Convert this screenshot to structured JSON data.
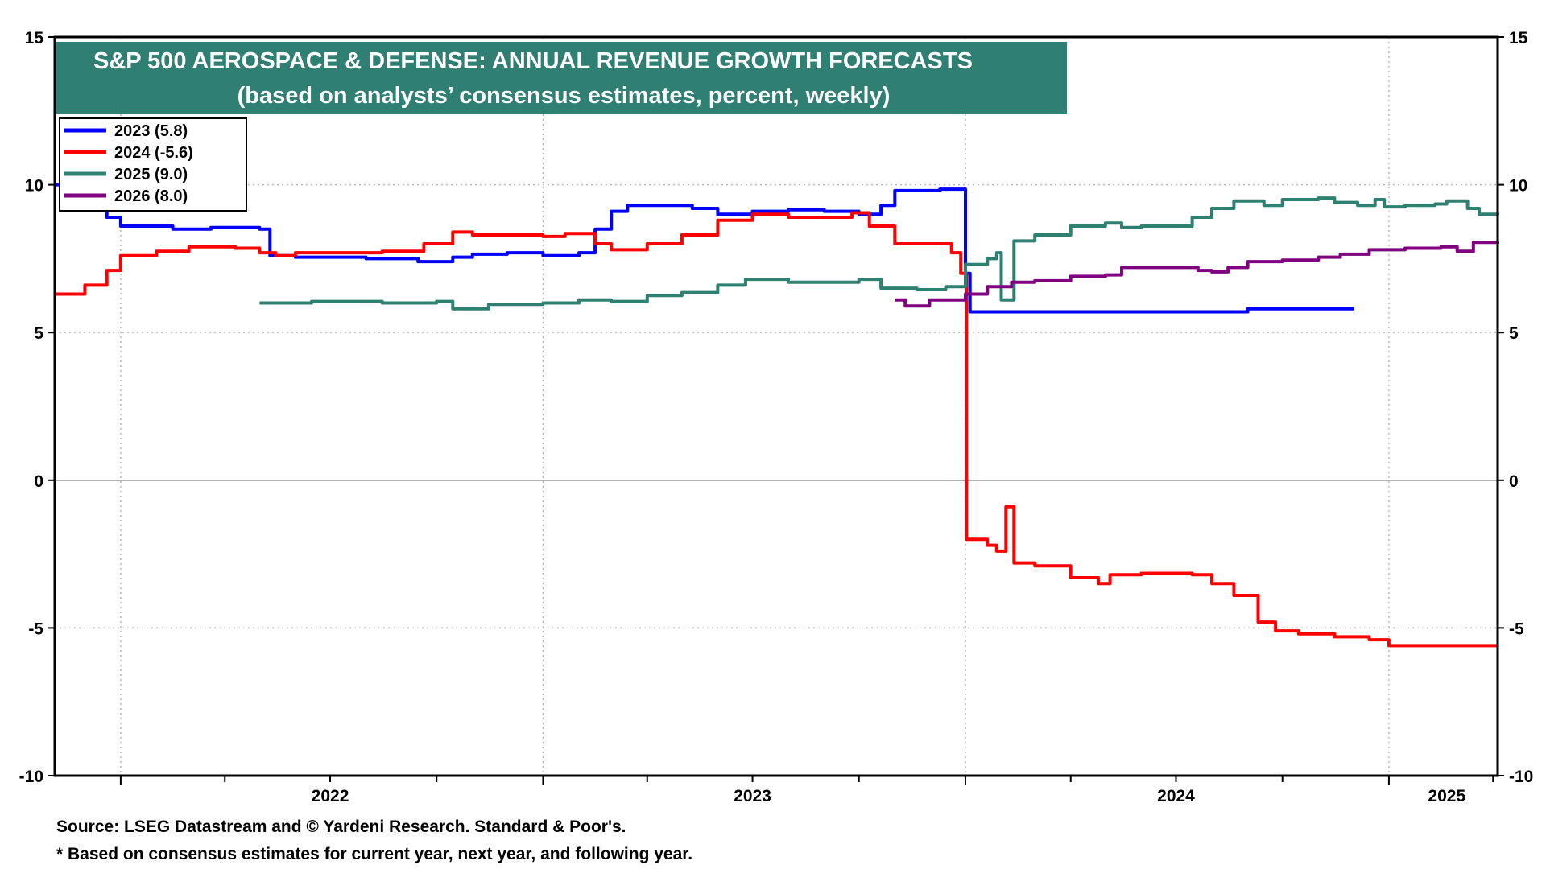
{
  "chart_data": {
    "type": "line",
    "title": "S&P 500 AEROSPACE & DEFENSE: ANNUAL REVENUE GROWTH FORECASTS",
    "subtitle": "(based on analysts’ consensus estimates, percent, weekly)",
    "ylim": [
      -10,
      15
    ],
    "yticks": [
      15,
      10,
      5,
      0,
      -5,
      -10
    ],
    "ytick_labels": [
      "15",
      "10",
      "5",
      "0",
      "-5",
      "-10"
    ],
    "xlim": [
      "2021-11-05",
      "2025-04-05"
    ],
    "year_labels": [
      {
        "label": "2022",
        "at": "2022-07-01"
      },
      {
        "label": "2023",
        "at": "2023-07-01"
      },
      {
        "label": "2024",
        "at": "2024-07-01"
      },
      {
        "label": "2025",
        "at": "2025-02-20"
      }
    ],
    "grid": true,
    "legend_position": "top-left",
    "series": [
      {
        "name": "2023 (5.8)",
        "color": "#0000ff",
        "points": [
          [
            "2021-11-05",
            10.0
          ],
          [
            "2021-12-05",
            9.4
          ],
          [
            "2021-12-20",
            8.9
          ],
          [
            "2022-01-01",
            8.6
          ],
          [
            "2022-02-01",
            8.6
          ],
          [
            "2022-02-15",
            8.5
          ],
          [
            "2022-03-20",
            8.55
          ],
          [
            "2022-05-01",
            8.5
          ],
          [
            "2022-05-10",
            7.6
          ],
          [
            "2022-06-01",
            7.55
          ],
          [
            "2022-08-01",
            7.5
          ],
          [
            "2022-09-15",
            7.4
          ],
          [
            "2022-10-15",
            7.55
          ],
          [
            "2022-11-01",
            7.65
          ],
          [
            "2022-12-01",
            7.7
          ],
          [
            "2023-01-01",
            7.6
          ],
          [
            "2023-02-01",
            7.7
          ],
          [
            "2023-02-15",
            8.5
          ],
          [
            "2023-03-01",
            9.1
          ],
          [
            "2023-03-15",
            9.3
          ],
          [
            "2023-04-15",
            9.3
          ],
          [
            "2023-05-10",
            9.2
          ],
          [
            "2023-06-01",
            9.0
          ],
          [
            "2023-07-01",
            9.1
          ],
          [
            "2023-08-01",
            9.15
          ],
          [
            "2023-09-01",
            9.1
          ],
          [
            "2023-10-01",
            9.0
          ],
          [
            "2023-10-20",
            9.3
          ],
          [
            "2023-11-01",
            9.8
          ],
          [
            "2023-12-10",
            9.85
          ],
          [
            "2023-12-28",
            9.85
          ],
          [
            "2024-01-01",
            7.0
          ],
          [
            "2024-01-05",
            5.7
          ],
          [
            "2024-07-01",
            5.7
          ],
          [
            "2024-09-01",
            5.8
          ],
          [
            "2024-12-02",
            5.8
          ]
        ]
      },
      {
        "name": "2024 (-5.6)",
        "color": "#ff0000",
        "points": [
          [
            "2021-11-05",
            6.3
          ],
          [
            "2021-12-01",
            6.6
          ],
          [
            "2021-12-20",
            7.1
          ],
          [
            "2022-01-01",
            7.6
          ],
          [
            "2022-02-01",
            7.75
          ],
          [
            "2022-03-01",
            7.9
          ],
          [
            "2022-04-10",
            7.85
          ],
          [
            "2022-05-01",
            7.7
          ],
          [
            "2022-05-15",
            7.6
          ],
          [
            "2022-06-01",
            7.7
          ],
          [
            "2022-08-15",
            7.75
          ],
          [
            "2022-09-20",
            8.0
          ],
          [
            "2022-10-15",
            8.4
          ],
          [
            "2022-11-01",
            8.3
          ],
          [
            "2022-12-01",
            8.3
          ],
          [
            "2023-01-01",
            8.25
          ],
          [
            "2023-01-20",
            8.35
          ],
          [
            "2023-02-15",
            8.0
          ],
          [
            "2023-03-01",
            7.8
          ],
          [
            "2023-04-01",
            8.0
          ],
          [
            "2023-05-01",
            8.3
          ],
          [
            "2023-06-01",
            8.8
          ],
          [
            "2023-07-01",
            9.0
          ],
          [
            "2023-08-01",
            8.9
          ],
          [
            "2023-09-01",
            8.9
          ],
          [
            "2023-09-25",
            9.05
          ],
          [
            "2023-10-10",
            8.6
          ],
          [
            "2023-11-01",
            8.0
          ],
          [
            "2023-12-01",
            8.0
          ],
          [
            "2023-12-20",
            7.7
          ],
          [
            "2023-12-28",
            7.0
          ],
          [
            "2024-01-02",
            -2.0
          ],
          [
            "2024-01-20",
            -2.2
          ],
          [
            "2024-01-28",
            -2.4
          ],
          [
            "2024-02-05",
            -0.9
          ],
          [
            "2024-02-12",
            -2.8
          ],
          [
            "2024-03-01",
            -2.9
          ],
          [
            "2024-04-01",
            -3.3
          ],
          [
            "2024-04-25",
            -3.5
          ],
          [
            "2024-05-05",
            -3.2
          ],
          [
            "2024-06-01",
            -3.15
          ],
          [
            "2024-07-15",
            -3.2
          ],
          [
            "2024-08-01",
            -3.5
          ],
          [
            "2024-08-20",
            -3.9
          ],
          [
            "2024-09-10",
            -4.8
          ],
          [
            "2024-09-25",
            -5.1
          ],
          [
            "2024-10-15",
            -5.2
          ],
          [
            "2024-11-15",
            -5.3
          ],
          [
            "2024-12-15",
            -5.4
          ],
          [
            "2025-01-01",
            -5.6
          ],
          [
            "2025-04-05",
            -5.6
          ]
        ]
      },
      {
        "name": "2025 (9.0)",
        "color": "#2e8070",
        "points": [
          [
            "2022-05-01",
            6.0
          ],
          [
            "2022-06-15",
            6.05
          ],
          [
            "2022-08-15",
            6.0
          ],
          [
            "2022-10-01",
            6.05
          ],
          [
            "2022-10-15",
            5.8
          ],
          [
            "2022-11-15",
            5.95
          ],
          [
            "2023-01-01",
            6.0
          ],
          [
            "2023-02-01",
            6.1
          ],
          [
            "2023-03-01",
            6.05
          ],
          [
            "2023-04-01",
            6.25
          ],
          [
            "2023-05-01",
            6.35
          ],
          [
            "2023-06-01",
            6.6
          ],
          [
            "2023-06-25",
            6.8
          ],
          [
            "2023-08-01",
            6.7
          ],
          [
            "2023-09-01",
            6.7
          ],
          [
            "2023-10-01",
            6.8
          ],
          [
            "2023-10-20",
            6.5
          ],
          [
            "2023-11-20",
            6.45
          ],
          [
            "2023-12-15",
            6.55
          ],
          [
            "2024-01-01",
            7.3
          ],
          [
            "2024-01-20",
            7.5
          ],
          [
            "2024-01-28",
            7.7
          ],
          [
            "2024-02-01",
            6.1
          ],
          [
            "2024-02-08",
            6.1
          ],
          [
            "2024-02-12",
            8.1
          ],
          [
            "2024-03-01",
            8.3
          ],
          [
            "2024-04-01",
            8.6
          ],
          [
            "2024-05-01",
            8.7
          ],
          [
            "2024-05-15",
            8.55
          ],
          [
            "2024-06-01",
            8.6
          ],
          [
            "2024-07-01",
            8.6
          ],
          [
            "2024-07-15",
            8.9
          ],
          [
            "2024-08-01",
            9.2
          ],
          [
            "2024-08-20",
            9.45
          ],
          [
            "2024-09-15",
            9.3
          ],
          [
            "2024-10-01",
            9.5
          ],
          [
            "2024-11-01",
            9.55
          ],
          [
            "2024-11-15",
            9.4
          ],
          [
            "2024-12-05",
            9.3
          ],
          [
            "2024-12-20",
            9.5
          ],
          [
            "2024-12-28",
            9.25
          ],
          [
            "2025-01-15",
            9.3
          ],
          [
            "2025-02-10",
            9.35
          ],
          [
            "2025-02-20",
            9.45
          ],
          [
            "2025-03-10",
            9.2
          ],
          [
            "2025-03-20",
            9.0
          ],
          [
            "2025-04-05",
            9.05
          ]
        ]
      },
      {
        "name": "2026 (8.0)",
        "color": "#800080",
        "points": [
          [
            "2023-11-01",
            6.1
          ],
          [
            "2023-11-10",
            5.9
          ],
          [
            "2023-12-01",
            6.1
          ],
          [
            "2024-01-01",
            6.3
          ],
          [
            "2024-01-20",
            6.55
          ],
          [
            "2024-02-10",
            6.7
          ],
          [
            "2024-03-01",
            6.75
          ],
          [
            "2024-04-01",
            6.9
          ],
          [
            "2024-05-01",
            6.95
          ],
          [
            "2024-05-15",
            7.2
          ],
          [
            "2024-07-01",
            7.2
          ],
          [
            "2024-07-20",
            7.1
          ],
          [
            "2024-08-01",
            7.05
          ],
          [
            "2024-08-15",
            7.2
          ],
          [
            "2024-09-01",
            7.4
          ],
          [
            "2024-10-01",
            7.45
          ],
          [
            "2024-11-01",
            7.55
          ],
          [
            "2024-11-20",
            7.65
          ],
          [
            "2024-12-15",
            7.8
          ],
          [
            "2025-01-15",
            7.85
          ],
          [
            "2025-02-15",
            7.9
          ],
          [
            "2025-03-01",
            7.75
          ],
          [
            "2025-03-15",
            8.05
          ],
          [
            "2025-04-05",
            8.0
          ]
        ]
      }
    ]
  },
  "footnotes": {
    "source": "Source: LSEG Datastream and © Yardeni Research. Standard & Poor's.",
    "note": "* Based on consensus estimates for current year, next year, and following year."
  }
}
